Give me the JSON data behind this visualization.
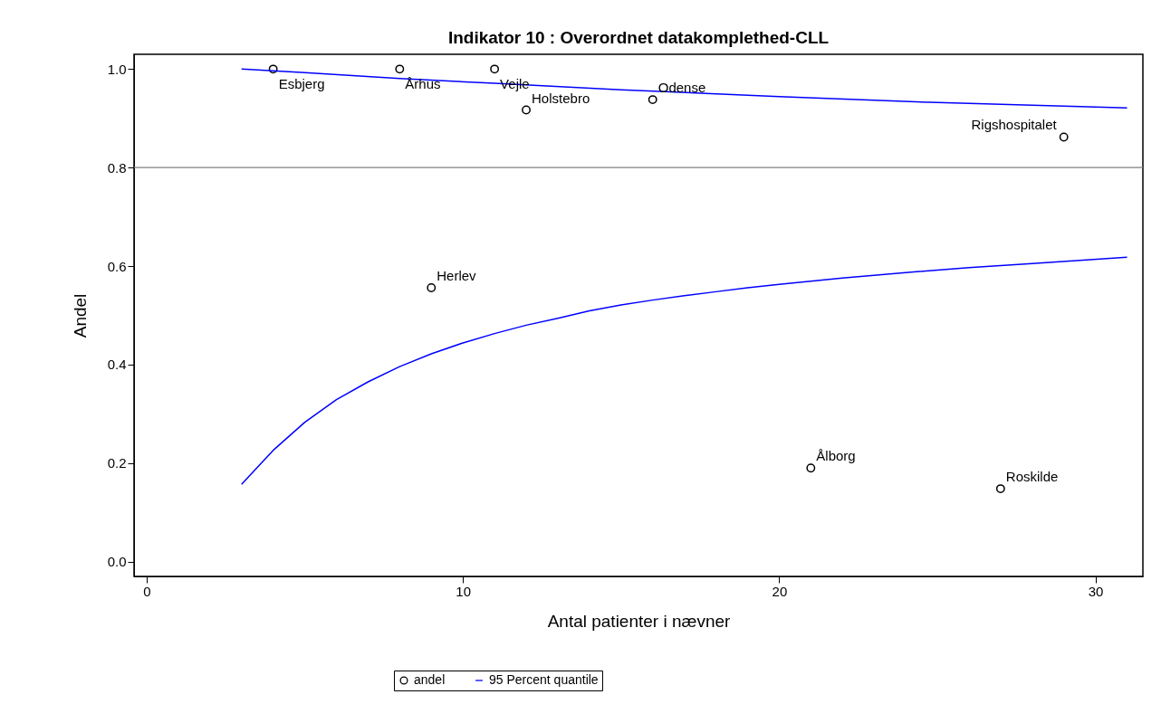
{
  "chart_data": {
    "type": "scatter",
    "title": "Indikator 10 : Overordnet datakomplethed-CLL",
    "xlabel": "Antal patienter i nævner",
    "ylabel": "Andel",
    "xlim": [
      -0.4,
      31.5
    ],
    "ylim": [
      -0.03,
      1.03
    ],
    "xticks": [
      0,
      10,
      20,
      30
    ],
    "yticks": [
      {
        "value": 0,
        "label": "0.0"
      },
      {
        "value": 0.2,
        "label": "0.2"
      },
      {
        "value": 0.4,
        "label": "0.4"
      },
      {
        "value": 0.6,
        "label": "0.6"
      },
      {
        "value": 0.8,
        "label": "0.8"
      },
      {
        "value": 1,
        "label": "1.0"
      }
    ],
    "grid": false,
    "legend": "bottom",
    "series": [
      {
        "name": "andel",
        "marker": "circle",
        "color": "#000000",
        "x": [
          4,
          8,
          11,
          12,
          16,
          29,
          9,
          21,
          27
        ],
        "values": [
          1,
          1,
          1,
          0.917,
          0.938,
          0.862,
          0.556,
          0.19,
          0.148
        ]
      },
      {
        "type": "line",
        "marker": "none",
        "name": "95 Percent quantile",
        "color": "#0000ff",
        "x": [
          3,
          5,
          8,
          11,
          15,
          20,
          25,
          31
        ],
        "values": [
          1,
          0.993,
          0.981,
          0.971,
          0.958,
          0.944,
          0.932,
          0.921
        ]
      },
      {
        "type": "line",
        "color": "#0000ff",
        "x": [
          3,
          4,
          5,
          6,
          7,
          8,
          9,
          10,
          11,
          12,
          13,
          14,
          15,
          16,
          17,
          18,
          19,
          20,
          22,
          24,
          26,
          28,
          31
        ],
        "values": [
          0.157,
          0.226,
          0.283,
          0.329,
          0.365,
          0.396,
          0.422,
          0.444,
          0.463,
          0.48,
          0.494,
          0.509,
          0.521,
          0.531,
          0.54,
          0.548,
          0.556,
          0.563,
          0.576,
          0.587,
          0.597,
          0.605,
          0.618
        ]
      }
    ],
    "ref_lines": [
      {
        "axis": "y",
        "value": 0.8,
        "color": "#808080"
      }
    ],
    "annotations": [
      {
        "text": "Esbjerg",
        "x": 4,
        "y": 1
      },
      {
        "text": "Århus",
        "x": 8,
        "y": 1
      },
      {
        "text": "Vejle",
        "x": 11,
        "y": 1
      },
      {
        "text": "Holstebro",
        "x": 12,
        "y": 0.917
      },
      {
        "text": "Odense",
        "x": 16,
        "y": 0.938
      },
      {
        "text": "Rigshospitalet",
        "x": 29,
        "y": 0.862
      },
      {
        "text": "Herlev",
        "x": 9,
        "y": 0.556
      },
      {
        "text": "Ålborg",
        "x": 21,
        "y": 0.19
      },
      {
        "text": "Roskilde",
        "x": 27,
        "y": 0.148
      }
    ]
  }
}
